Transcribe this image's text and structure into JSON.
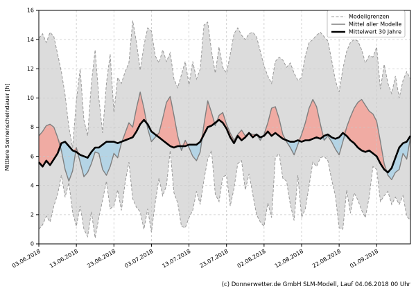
{
  "caption": "(c) Donnerwetter.de GmbH SLM-Modell, Lauf 04.06.2018 00 Uhr",
  "chart_data": {
    "type": "line",
    "title": "",
    "xlabel": "",
    "ylabel": "Mittlere Sonnenscheindauer [h]",
    "ylim": [
      0,
      16
    ],
    "y_ticks": [
      0,
      2,
      4,
      6,
      8,
      10,
      12,
      14,
      16
    ],
    "x_start_date": "03.06.2018",
    "x_step_days": 1,
    "n_points": 100,
    "x_tick_indices": [
      0,
      10,
      20,
      30,
      40,
      50,
      60,
      70,
      80,
      90
    ],
    "x_tick_labels": [
      "03.06.2018",
      "13.06.2018",
      "23.06.2018",
      "03.07.2018",
      "13.07.2018",
      "23.07.2018",
      "02.08.2018",
      "12.08.2018",
      "22.08.2018",
      "01.09.2018"
    ],
    "grid": "dashed",
    "legend": {
      "position": "upper right",
      "entries": [
        {
          "label": "Modellgrenzen",
          "style": "dashed-gray"
        },
        {
          "label": "Mittel aller Modelle",
          "style": "solid-gray"
        },
        {
          "label": "Mittelwert 30 Jahre",
          "style": "solid-black-thick"
        }
      ]
    },
    "colors": {
      "band_fill": "#dcdcdc",
      "bounds_line": "#999999",
      "above_normal_fill": "#f0aba3",
      "below_normal_fill": "#b4d4e5",
      "model_mean_line": "#7f7f7f",
      "climate_mean_line": "#000000",
      "grid_line": "#c8c8c8",
      "frame": "#000000"
    },
    "series": [
      {
        "name": "Modellgrenze oben",
        "values": [
          14.1,
          14.4,
          13.8,
          14.5,
          14.2,
          13.0,
          11.8,
          10.2,
          8.0,
          6.6,
          9.8,
          12.0,
          8.5,
          7.4,
          11.0,
          13.3,
          10.0,
          7.6,
          11.0,
          13.0,
          9.0,
          11.4,
          11.0,
          11.8,
          12.4,
          15.3,
          13.8,
          11.9,
          13.6,
          14.8,
          14.6,
          12.9,
          12.4,
          13.3,
          12.5,
          13.1,
          11.3,
          10.7,
          11.6,
          12.5,
          10.9,
          12.5,
          11.3,
          12.0,
          15.0,
          15.2,
          13.2,
          11.7,
          13.5,
          12.1,
          11.7,
          13.0,
          14.4,
          14.8,
          14.3,
          14.0,
          14.4,
          14.5,
          14.2,
          13.2,
          12.2,
          11.5,
          11.0,
          12.5,
          12.8,
          12.6,
          12.1,
          12.4,
          11.7,
          11.2,
          11.4,
          12.9,
          13.8,
          14.0,
          14.3,
          14.5,
          14.2,
          13.9,
          12.6,
          11.2,
          10.4,
          12.0,
          13.2,
          13.8,
          14.0,
          13.9,
          13.3,
          12.4,
          12.9,
          12.8,
          13.5,
          10.6,
          12.3,
          11.0,
          10.3,
          11.5,
          10.0,
          11.2,
          11.8,
          11.3
        ]
      },
      {
        "name": "Modellgrenze unten",
        "values": [
          1.0,
          1.3,
          1.9,
          1.5,
          2.6,
          3.4,
          4.7,
          3.2,
          4.2,
          2.2,
          1.2,
          2.6,
          1.0,
          0.5,
          2.2,
          0.4,
          1.8,
          3.0,
          4.3,
          2.4,
          2.6,
          3.7,
          2.3,
          4.2,
          5.6,
          3.1,
          2.5,
          2.2,
          1.0,
          2.4,
          0.8,
          2.8,
          4.5,
          3.3,
          4.0,
          6.4,
          3.5,
          2.8,
          1.2,
          1.1,
          1.8,
          2.3,
          3.6,
          2.7,
          4.4,
          5.8,
          6.4,
          3.4,
          2.9,
          4.6,
          4.7,
          2.6,
          3.8,
          5.5,
          5.7,
          3.7,
          4.8,
          3.4,
          2.0,
          1.5,
          1.2,
          2.8,
          1.8,
          5.9,
          6.2,
          4.5,
          4.3,
          2.7,
          1.6,
          4.7,
          1.8,
          2.4,
          4.0,
          5.6,
          5.3,
          5.9,
          6.0,
          5.7,
          4.4,
          3.3,
          1.1,
          1.0,
          3.7,
          2.1,
          3.5,
          3.0,
          2.3,
          1.8,
          3.2,
          5.3,
          5.1,
          2.9,
          3.3,
          3.6,
          2.7,
          3.2,
          2.7,
          3.3,
          1.9,
          1.6
        ]
      },
      {
        "name": "Mittel aller Modelle",
        "values": [
          7.4,
          7.7,
          8.1,
          8.2,
          8.0,
          7.3,
          6.4,
          5.1,
          4.3,
          5.0,
          6.6,
          5.6,
          4.6,
          4.9,
          5.5,
          6.3,
          6.2,
          5.1,
          4.7,
          5.3,
          6.2,
          5.9,
          6.9,
          7.6,
          8.3,
          8.0,
          9.3,
          10.4,
          9.3,
          7.9,
          7.0,
          7.3,
          7.6,
          8.6,
          9.7,
          10.1,
          8.8,
          7.4,
          6.4,
          7.1,
          6.6,
          6.0,
          5.7,
          6.3,
          8.2,
          9.8,
          9.0,
          8.1,
          8.8,
          9.0,
          8.2,
          7.6,
          7.1,
          7.5,
          7.8,
          7.4,
          7.6,
          7.5,
          7.5,
          7.1,
          7.5,
          8.3,
          9.3,
          9.4,
          8.6,
          7.5,
          7.0,
          6.6,
          6.1,
          6.8,
          7.5,
          8.3,
          9.3,
          9.9,
          9.4,
          8.2,
          7.1,
          7.4,
          7.0,
          6.5,
          6.1,
          7.0,
          8.0,
          8.7,
          9.3,
          9.7,
          9.9,
          9.5,
          9.1,
          8.9,
          8.4,
          7.0,
          5.5,
          4.7,
          4.4,
          4.9,
          5.1,
          6.2,
          5.8,
          7.3
        ]
      },
      {
        "name": "Mittelwert 30 Jahre",
        "values": [
          5.6,
          5.3,
          5.7,
          5.4,
          5.8,
          6.2,
          6.9,
          7.0,
          6.7,
          6.4,
          6.3,
          6.1,
          6.0,
          5.9,
          6.3,
          6.6,
          6.6,
          6.8,
          7.0,
          7.0,
          7.0,
          6.9,
          7.0,
          7.1,
          7.2,
          7.3,
          7.7,
          8.2,
          8.5,
          8.2,
          7.7,
          7.5,
          7.3,
          7.1,
          6.9,
          6.7,
          6.6,
          6.7,
          6.7,
          6.7,
          6.8,
          6.8,
          6.8,
          7.0,
          7.5,
          8.0,
          8.1,
          8.3,
          8.5,
          8.3,
          7.9,
          7.3,
          6.9,
          7.4,
          7.1,
          7.3,
          7.6,
          7.3,
          7.5,
          7.3,
          7.4,
          7.7,
          7.4,
          7.6,
          7.4,
          7.2,
          7.1,
          7.0,
          7.0,
          7.1,
          7.0,
          7.1,
          7.1,
          7.2,
          7.3,
          7.2,
          7.4,
          7.5,
          7.3,
          7.2,
          7.3,
          7.6,
          7.4,
          7.1,
          6.9,
          6.6,
          6.4,
          6.3,
          6.4,
          6.2,
          6.0,
          5.5,
          5.1,
          4.9,
          5.2,
          5.9,
          6.6,
          6.9,
          7.0,
          7.4
        ]
      }
    ]
  }
}
